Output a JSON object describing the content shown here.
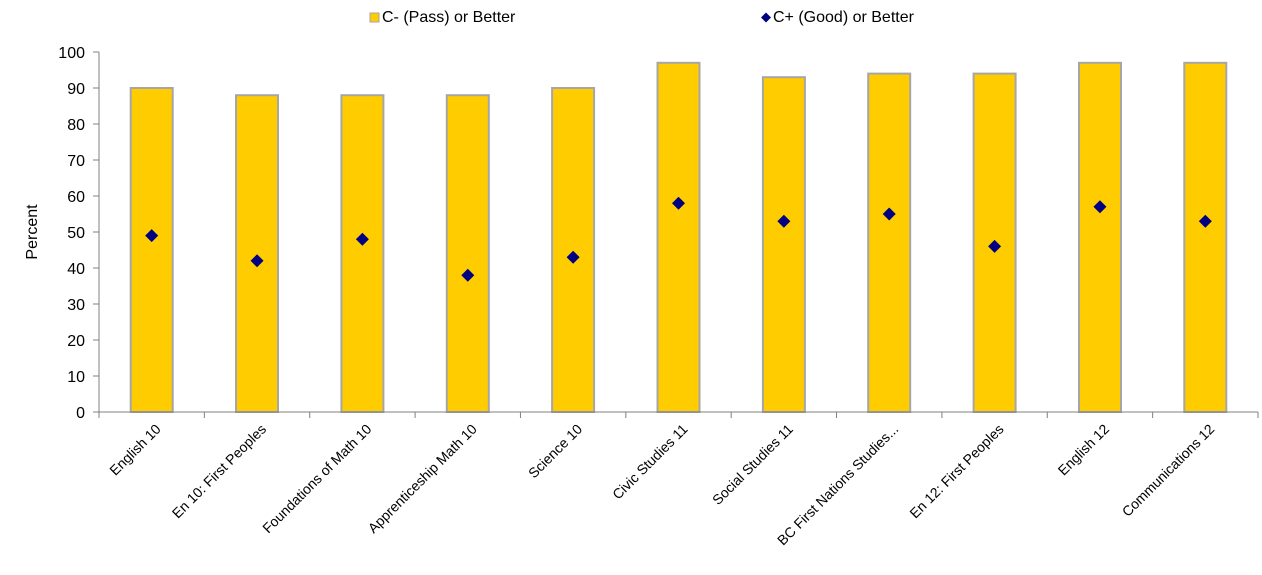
{
  "colors": {
    "bar_fill": "#FFCC00",
    "bar_stroke": "#A6A6A6",
    "marker": "#000080",
    "axis": "#808080"
  },
  "chart_data": {
    "type": "bar",
    "categories": [
      "English 10",
      "En 10: First Peoples",
      "Foundations of Math 10",
      "Apprenticeship Math 10",
      "Science 10",
      "Civic Studies 11",
      "Social Studies 11",
      "BC First Nations Studies...",
      "En 12: First Peoples",
      "English 12",
      "Communications 12"
    ],
    "series": [
      {
        "name": "C- (Pass) or Better",
        "type": "bar",
        "values": [
          90,
          88,
          88,
          88,
          90,
          97,
          93,
          94,
          94,
          97,
          97
        ]
      },
      {
        "name": "C+ (Good) or Better",
        "type": "marker",
        "marker": "diamond",
        "values": [
          49,
          42,
          48,
          38,
          43,
          58,
          53,
          55,
          46,
          57,
          53
        ]
      }
    ],
    "ylabel": "Percent",
    "ylim": [
      0,
      100
    ],
    "yticks": [
      0,
      10,
      20,
      30,
      40,
      50,
      60,
      70,
      80,
      90,
      100
    ],
    "grid": false,
    "legend_position": "top"
  }
}
